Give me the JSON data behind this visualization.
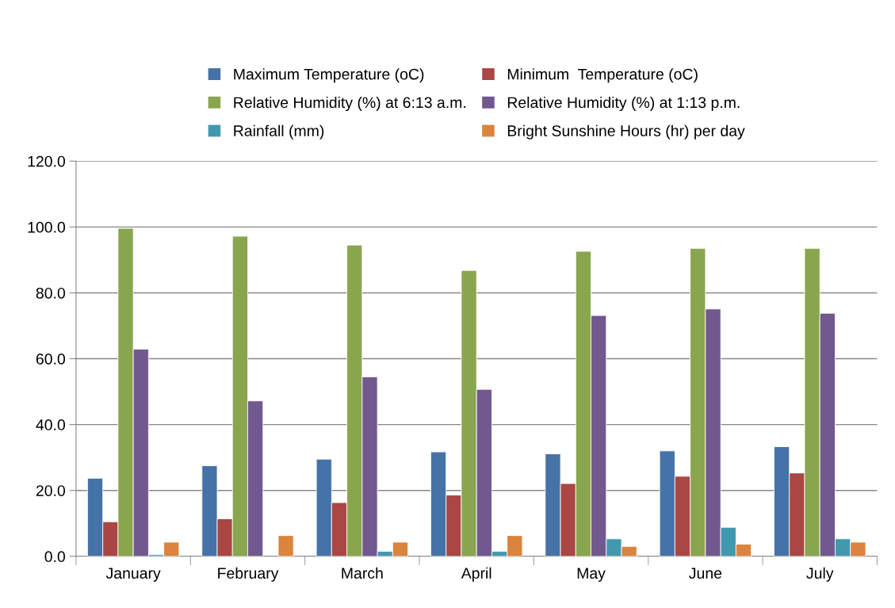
{
  "chart_data": {
    "type": "bar",
    "categories": [
      "January",
      "February",
      "March",
      "April",
      "May",
      "June",
      "July"
    ],
    "series": [
      {
        "name": "Maximum Temperature (oC)",
        "color": "#4572a7",
        "values": [
          23.7,
          27.5,
          29.5,
          31.7,
          31.1,
          32.0,
          33.3
        ]
      },
      {
        "name": "Minimum  Temperature (oC)",
        "color": "#aa4643",
        "values": [
          10.5,
          11.4,
          16.3,
          18.6,
          22.1,
          24.3,
          25.3
        ]
      },
      {
        "name": "Relative Humidity (%) at 6:13 a.m.",
        "color": "#89a54e",
        "values": [
          99.6,
          97.2,
          94.5,
          86.8,
          92.6,
          93.5,
          93.5
        ]
      },
      {
        "name": "Relative Humidity (%) at 1:13 p.m.",
        "color": "#71588f",
        "values": [
          62.9,
          47.2,
          54.5,
          50.7,
          73.1,
          75.1,
          73.8
        ]
      },
      {
        "name": "Rainfall (mm)",
        "color": "#4198af",
        "values": [
          0.5,
          null,
          1.5,
          1.5,
          5.3,
          8.8,
          5.3
        ]
      },
      {
        "name": "Bright Sunshine Hours (hr) per day",
        "color": "#db843d",
        "values": [
          4.3,
          6.3,
          4.3,
          6.3,
          3.0,
          3.7,
          4.3
        ]
      }
    ],
    "ylim": [
      0,
      120
    ],
    "yticks": [
      {
        "value": 0,
        "label": "0.0"
      },
      {
        "value": 20,
        "label": "20.0"
      },
      {
        "value": 40,
        "label": "40.0"
      },
      {
        "value": 60,
        "label": "60.0"
      },
      {
        "value": 80,
        "label": "80.0"
      },
      {
        "value": 100,
        "label": "100.0"
      },
      {
        "value": 120,
        "label": "120.0"
      }
    ],
    "grid": "y",
    "legend": "top"
  }
}
